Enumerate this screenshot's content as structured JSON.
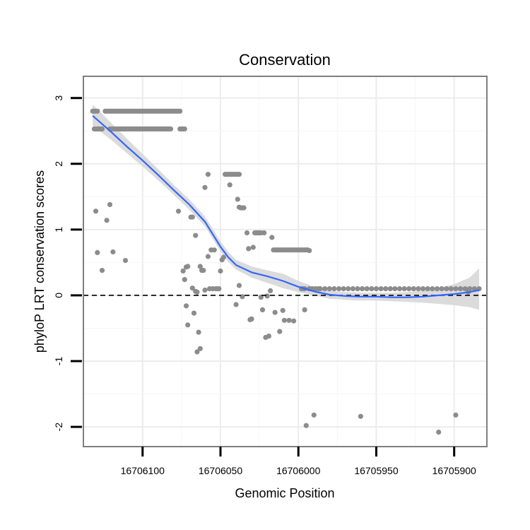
{
  "chart_data": {
    "type": "scatter",
    "title": "Conservation",
    "xlabel": "Genomic Position",
    "ylabel": "phyloP LRT conservation scores",
    "x_reversed": true,
    "xlim": [
      16706138,
      16705879
    ],
    "ylim": [
      -2.3,
      3.33
    ],
    "x_ticks": [
      16706100,
      16706050,
      16706000,
      16705950,
      16705900
    ],
    "x_tick_labels": [
      "16706100",
      "16706050",
      "16706000",
      "16705950",
      "16705900"
    ],
    "y_ticks": [
      -2,
      -1,
      0,
      1,
      2,
      3
    ],
    "y_tick_labels": [
      "-2",
      "-1",
      "0",
      "1",
      "2",
      "3"
    ],
    "reference_line": {
      "y": 0,
      "style": "dashed",
      "color": "#000000"
    },
    "point_color": "#8c8c8c",
    "smooth_color": "#3366ff",
    "band_color": "#d9d9d9",
    "series": [
      {
        "name": "scores",
        "points": [
          [
            16706132,
            2.8
          ],
          [
            16706131,
            2.8
          ],
          [
            16706130,
            2.8
          ],
          [
            16706129,
            2.8
          ],
          [
            16706131,
            2.53
          ],
          [
            16706130,
            2.53
          ],
          [
            16706129,
            2.53
          ],
          [
            16706128,
            2.53
          ],
          [
            16706127,
            2.53
          ],
          [
            16706126,
            2.53
          ],
          [
            16706124,
            2.8
          ],
          [
            16706123,
            2.8
          ],
          [
            16706122,
            2.8
          ],
          [
            16706121,
            2.8
          ],
          [
            16706120,
            2.8
          ],
          [
            16706119,
            2.8
          ],
          [
            16706118,
            2.8
          ],
          [
            16706117,
            2.8
          ],
          [
            16706116,
            2.8
          ],
          [
            16706115,
            2.8
          ],
          [
            16706114,
            2.8
          ],
          [
            16706113,
            2.8
          ],
          [
            16706112,
            2.8
          ],
          [
            16706111,
            2.8
          ],
          [
            16706110,
            2.8
          ],
          [
            16706109,
            2.8
          ],
          [
            16706108,
            2.8
          ],
          [
            16706107,
            2.8
          ],
          [
            16706106,
            2.8
          ],
          [
            16706105,
            2.8
          ],
          [
            16706104,
            2.8
          ],
          [
            16706103,
            2.8
          ],
          [
            16706102,
            2.8
          ],
          [
            16706101,
            2.8
          ],
          [
            16706100,
            2.8
          ],
          [
            16706099,
            2.8
          ],
          [
            16706098,
            2.8
          ],
          [
            16706097,
            2.8
          ],
          [
            16706096,
            2.8
          ],
          [
            16706095,
            2.8
          ],
          [
            16706094,
            2.8
          ],
          [
            16706093,
            2.8
          ],
          [
            16706092,
            2.8
          ],
          [
            16706091,
            2.8
          ],
          [
            16706090,
            2.8
          ],
          [
            16706089,
            2.8
          ],
          [
            16706088,
            2.8
          ],
          [
            16706087,
            2.8
          ],
          [
            16706086,
            2.8
          ],
          [
            16706085,
            2.8
          ],
          [
            16706084,
            2.8
          ],
          [
            16706083,
            2.8
          ],
          [
            16706082,
            2.8
          ],
          [
            16706081,
            2.8
          ],
          [
            16706080,
            2.8
          ],
          [
            16706079,
            2.8
          ],
          [
            16706078,
            2.8
          ],
          [
            16706077,
            2.8
          ],
          [
            16706076,
            2.8
          ],
          [
            16706121,
            2.53
          ],
          [
            16706120,
            2.53
          ],
          [
            16706119,
            2.53
          ],
          [
            16706118,
            2.53
          ],
          [
            16706117,
            2.53
          ],
          [
            16706116,
            2.53
          ],
          [
            16706115,
            2.53
          ],
          [
            16706114,
            2.53
          ],
          [
            16706113,
            2.53
          ],
          [
            16706112,
            2.53
          ],
          [
            16706111,
            2.53
          ],
          [
            16706110,
            2.53
          ],
          [
            16706109,
            2.53
          ],
          [
            16706108,
            2.53
          ],
          [
            16706107,
            2.53
          ],
          [
            16706106,
            2.53
          ],
          [
            16706105,
            2.53
          ],
          [
            16706104,
            2.53
          ],
          [
            16706103,
            2.53
          ],
          [
            16706102,
            2.53
          ],
          [
            16706101,
            2.53
          ],
          [
            16706100,
            2.53
          ],
          [
            16706099,
            2.53
          ],
          [
            16706098,
            2.53
          ],
          [
            16706097,
            2.53
          ],
          [
            16706096,
            2.53
          ],
          [
            16706095,
            2.53
          ],
          [
            16706094,
            2.53
          ],
          [
            16706093,
            2.53
          ],
          [
            16706092,
            2.53
          ],
          [
            16706091,
            2.53
          ],
          [
            16706090,
            2.53
          ],
          [
            16706089,
            2.53
          ],
          [
            16706088,
            2.53
          ],
          [
            16706087,
            2.53
          ],
          [
            16706086,
            2.53
          ],
          [
            16706085,
            2.53
          ],
          [
            16706084,
            2.53
          ],
          [
            16706083,
            2.53
          ],
          [
            16706082,
            2.53
          ],
          [
            16706076,
            2.53
          ],
          [
            16706075,
            2.53
          ],
          [
            16706074,
            2.53
          ],
          [
            16706073,
            2.53
          ],
          [
            16706130,
            1.28
          ],
          [
            16706129,
            0.65
          ],
          [
            16706126,
            0.38
          ],
          [
            16706123,
            1.14
          ],
          [
            16706121,
            1.38
          ],
          [
            16706119,
            0.66
          ],
          [
            16706111,
            0.53
          ],
          [
            16706077,
            1.28
          ],
          [
            16706074,
            0.37
          ],
          [
            16706073,
            0.24
          ],
          [
            16706072,
            0.43
          ],
          [
            16706071,
            0.44
          ],
          [
            16706069,
            1.19
          ],
          [
            16706068,
            1.19
          ],
          [
            16706068,
            0.11
          ],
          [
            16706066,
            0.91
          ],
          [
            16706066,
            0.06
          ],
          [
            16706065,
            0.05
          ],
          [
            16706064,
            -0.56
          ],
          [
            16706063,
            -0.81
          ],
          [
            16706063,
            0.44
          ],
          [
            16706062,
            0.38
          ],
          [
            16706061,
            0.38
          ],
          [
            16706072,
            -0.16
          ],
          [
            16706071,
            -0.45
          ],
          [
            16706067,
            -0.27
          ],
          [
            16706065,
            -0.86
          ],
          [
            16706060,
            1.64
          ],
          [
            16706058,
            1.84
          ],
          [
            16706060,
            0.08
          ],
          [
            16706058,
            0.59
          ],
          [
            16706057,
            0.1
          ],
          [
            16706056,
            0.69
          ],
          [
            16706055,
            0.1
          ],
          [
            16706054,
            0.69
          ],
          [
            16706053,
            0.1
          ],
          [
            16706052,
            0.1
          ],
          [
            16706051,
            0.1
          ],
          [
            16706050,
            0.37
          ],
          [
            16706049,
            0.54
          ],
          [
            16706048,
            0.58
          ],
          [
            16706047,
            1.84
          ],
          [
            16706046,
            1.84
          ],
          [
            16706045,
            1.84
          ],
          [
            16706044,
            1.84
          ],
          [
            16706043,
            1.84
          ],
          [
            16706042,
            1.84
          ],
          [
            16706041,
            1.84
          ],
          [
            16706040,
            1.84
          ],
          [
            16706039,
            1.84
          ],
          [
            16706038,
            1.84
          ],
          [
            16706044,
            1.68
          ],
          [
            16706039,
            1.46
          ],
          [
            16706038,
            1.34
          ],
          [
            16706037,
            1.33
          ],
          [
            16706036,
            1.33
          ],
          [
            16706035,
            1.33
          ],
          [
            16706040,
            -0.14
          ],
          [
            16706038,
            0.15
          ],
          [
            16706036,
            -0.02
          ],
          [
            16706033,
            0.95
          ],
          [
            16706032,
            0.71
          ],
          [
            16706031,
            -0.37
          ],
          [
            16706030,
            -0.36
          ],
          [
            16706029,
            0.73
          ],
          [
            16706028,
            0.95
          ],
          [
            16706027,
            0.95
          ],
          [
            16706026,
            0.95
          ],
          [
            16706025,
            0.95
          ],
          [
            16706024,
            -0.03
          ],
          [
            16706024,
            0.95
          ],
          [
            16706023,
            -0.22
          ],
          [
            16706022,
            0.95
          ],
          [
            16706021,
            -0.64
          ],
          [
            16706020,
            -0.01
          ],
          [
            16706019,
            -0.62
          ],
          [
            16706018,
            0.07
          ],
          [
            16706017,
            0.88
          ],
          [
            16706016,
            0.69
          ],
          [
            16706015,
            0.69
          ],
          [
            16706014,
            0.69
          ],
          [
            16706013,
            0.69
          ],
          [
            16706012,
            0.69
          ],
          [
            16706011,
            0.69
          ],
          [
            16706010,
            0.69
          ],
          [
            16706009,
            0.69
          ],
          [
            16706008,
            0.69
          ],
          [
            16706007,
            0.69
          ],
          [
            16706006,
            0.69
          ],
          [
            16706005,
            0.69
          ],
          [
            16706004,
            0.69
          ],
          [
            16706003,
            0.69
          ],
          [
            16706002,
            0.69
          ],
          [
            16706001,
            0.69
          ],
          [
            16706000,
            0.69
          ],
          [
            16705999,
            0.69
          ],
          [
            16705998,
            0.69
          ],
          [
            16705997,
            0.69
          ],
          [
            16705996,
            0.69
          ],
          [
            16705995,
            0.69
          ],
          [
            16705994,
            0.69
          ],
          [
            16705993,
            0.68
          ],
          [
            16706015,
            -0.26
          ],
          [
            16706012,
            -0.55
          ],
          [
            16706010,
            -0.23
          ],
          [
            16706009,
            -0.38
          ],
          [
            16706006,
            -0.38
          ],
          [
            16706003,
            -0.39
          ],
          [
            16705996,
            -0.22
          ],
          [
            16705998,
            0.1
          ],
          [
            16705997,
            0.1
          ],
          [
            16705996,
            0.1
          ],
          [
            16705995,
            -1.98
          ],
          [
            16705993,
            0.1
          ],
          [
            16705991,
            0.1
          ],
          [
            16705990,
            -1.82
          ],
          [
            16705989,
            0.1
          ],
          [
            16705987,
            0.1
          ],
          [
            16705986,
            0.1
          ],
          [
            16705983,
            0.1
          ],
          [
            16705980,
            0.1
          ],
          [
            16705977,
            0.1
          ],
          [
            16705974,
            0.1
          ],
          [
            16705971,
            0.1
          ],
          [
            16705968,
            0.1
          ],
          [
            16705965,
            0.1
          ],
          [
            16705962,
            0.1
          ],
          [
            16705960,
            -1.84
          ],
          [
            16705959,
            0.1
          ],
          [
            16705956,
            0.1
          ],
          [
            16705953,
            0.1
          ],
          [
            16705950,
            0.1
          ],
          [
            16705947,
            0.1
          ],
          [
            16705944,
            0.1
          ],
          [
            16705941,
            0.1
          ],
          [
            16705938,
            0.1
          ],
          [
            16705935,
            0.1
          ],
          [
            16705932,
            0.1
          ],
          [
            16705929,
            0.1
          ],
          [
            16705926,
            0.1
          ],
          [
            16705923,
            0.1
          ],
          [
            16705920,
            0.1
          ],
          [
            16705917,
            0.1
          ],
          [
            16705914,
            0.1
          ],
          [
            16705911,
            0.1
          ],
          [
            16705910,
            -2.08
          ],
          [
            16705908,
            0.1
          ],
          [
            16705905,
            0.1
          ],
          [
            16705902,
            0.1
          ],
          [
            16705899,
            -1.82
          ],
          [
            16705899,
            0.1
          ],
          [
            16705896,
            0.1
          ],
          [
            16705893,
            0.1
          ],
          [
            16705891,
            0.05
          ],
          [
            16705890,
            0.1
          ],
          [
            16705887,
            0.1
          ],
          [
            16705884,
            0.1
          ]
        ]
      }
    ],
    "smooth_line": {
      "x": [
        16706132,
        16706120,
        16706110,
        16706100,
        16706090,
        16706080,
        16706070,
        16706060,
        16706055,
        16706050,
        16706045,
        16706040,
        16706030,
        16706020,
        16706010,
        16706000,
        16705990,
        16705980,
        16705970,
        16705960,
        16705950,
        16705940,
        16705930,
        16705920,
        16705910,
        16705900,
        16705890,
        16705884
      ],
      "y": [
        2.73,
        2.48,
        2.26,
        2.05,
        1.83,
        1.6,
        1.38,
        1.12,
        0.93,
        0.74,
        0.58,
        0.46,
        0.35,
        0.29,
        0.22,
        0.13,
        0.06,
        0.01,
        -0.01,
        -0.02,
        -0.02,
        -0.03,
        -0.03,
        -0.02,
        0.0,
        0.02,
        0.05,
        0.08
      ],
      "lower": [
        2.58,
        2.36,
        2.16,
        1.96,
        1.75,
        1.53,
        1.3,
        1.05,
        0.86,
        0.67,
        0.51,
        0.39,
        0.27,
        0.19,
        0.11,
        0.05,
        0.0,
        -0.05,
        -0.07,
        -0.08,
        -0.08,
        -0.09,
        -0.1,
        -0.11,
        -0.13,
        -0.15,
        -0.18,
        -0.22
      ],
      "upper": [
        2.9,
        2.62,
        2.38,
        2.15,
        1.92,
        1.68,
        1.46,
        1.2,
        1.01,
        0.82,
        0.66,
        0.54,
        0.44,
        0.38,
        0.33,
        0.22,
        0.13,
        0.07,
        0.05,
        0.04,
        0.04,
        0.04,
        0.05,
        0.07,
        0.11,
        0.17,
        0.27,
        0.41
      ]
    }
  }
}
